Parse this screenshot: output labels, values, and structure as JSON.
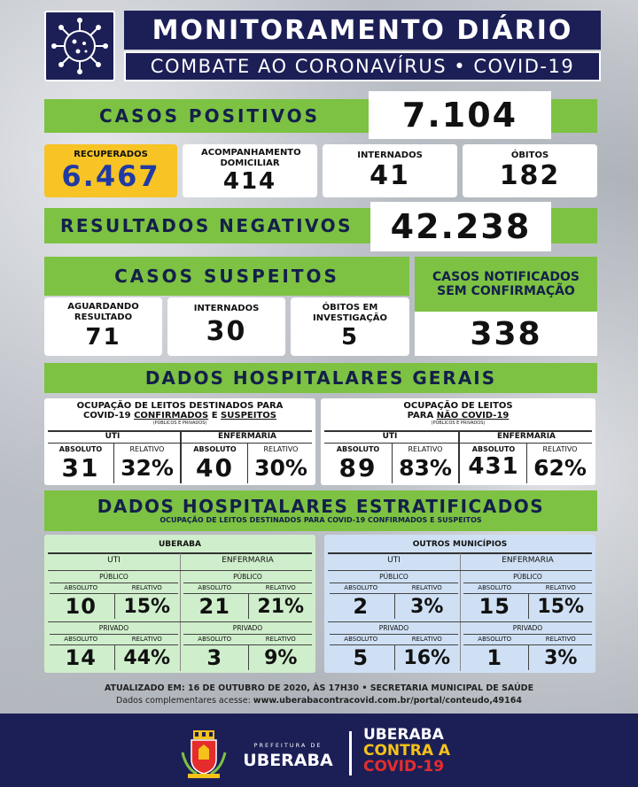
{
  "header": {
    "title": "MONITORAMENTO DIÁRIO",
    "subtitle": "COMBATE AO CORONAVÍRUS • COVID-19"
  },
  "positivos": {
    "label": "CASOS POSITIVOS",
    "value": "7.104"
  },
  "breakdown": [
    {
      "label": "RECUPERADOS",
      "value": "6.467"
    },
    {
      "label": "ACOMPANHAMENTO DOMICILIAR",
      "value": "414"
    },
    {
      "label": "INTERNADOS",
      "value": "41"
    },
    {
      "label": "ÓBITOS",
      "value": "182"
    }
  ],
  "negativos": {
    "label": "RESULTADOS NEGATIVOS",
    "value": "42.238"
  },
  "suspeitos": {
    "label": "CASOS SUSPEITOS",
    "items": [
      {
        "label": "AGUARDANDO RESULTADO",
        "value": "71"
      },
      {
        "label": "INTERNADOS",
        "value": "30"
      },
      {
        "label": "ÓBITOS EM INVESTIGAÇÃO",
        "value": "5"
      }
    ]
  },
  "notificados": {
    "label": "CASOS NOTIFICADOS SEM CONFIRMAÇÃO",
    "value": "338"
  },
  "gerais": {
    "title": "DADOS HOSPITALARES GERAIS",
    "covid": {
      "t1": "OCUPAÇÃO DE LEITOS DESTINADOS PARA",
      "t2a": "COVID-19 ",
      "t2b": "CONFIRMADOS",
      "t2c": " E ",
      "t2d": "SUSPEITOS",
      "note": "(PÚBLICOS E PRIVADOS)",
      "uti": "UTI",
      "enf": "ENFERMARIA",
      "abs": "ABSOLUTO",
      "rel": "RELATIVO",
      "uti_abs": "31",
      "uti_rel": "32%",
      "enf_abs": "40",
      "enf_rel": "30%"
    },
    "naocovid": {
      "t1": "OCUPAÇÃO DE LEITOS",
      "t2a": "PARA ",
      "t2b": "NÃO COVID-19",
      "note": "(PÚBLICOS E PRIVADOS)",
      "uti": "UTI",
      "enf": "ENFERMARIA",
      "abs": "ABSOLUTO",
      "rel": "RELATIVO",
      "uti_abs": "89",
      "uti_rel": "83%",
      "enf_abs": "431",
      "enf_rel": "62%"
    }
  },
  "estratificados": {
    "title": "DADOS HOSPITALARES ESTRATIFICADOS",
    "subtitle": "OCUPAÇÃO DE LEITOS DESTINADOS PARA COVID-19 CONFIRMADOS E SUSPEITOS",
    "uberaba": {
      "name": "UBERABA",
      "uti": "UTI",
      "enf": "ENFERMARIA",
      "pub": "PÚBLICO",
      "priv": "PRIVADO",
      "abs": "ABSOLUTO",
      "rel": "RELATIVO",
      "uti_pub_abs": "10",
      "uti_pub_rel": "15%",
      "enf_pub_abs": "21",
      "enf_pub_rel": "21%",
      "uti_priv_abs": "14",
      "uti_priv_rel": "44%",
      "enf_priv_abs": "3",
      "enf_priv_rel": "9%"
    },
    "outros": {
      "name": "OUTROS MUNICÍPIOS",
      "uti": "UTI",
      "enf": "ENFERMARIA",
      "pub": "PÚBLICO",
      "priv": "PRIVADO",
      "abs": "ABSOLUTO",
      "rel": "RELATIVO",
      "uti_pub_abs": "2",
      "uti_pub_rel": "3%",
      "enf_pub_abs": "15",
      "enf_pub_rel": "15%",
      "uti_priv_abs": "5",
      "uti_priv_rel": "16%",
      "enf_priv_abs": "1",
      "enf_priv_rel": "3%"
    }
  },
  "update": {
    "line1": "ATUALIZADO EM: 16 DE OUTUBRO DE 2020, ÀS 17H30 • SECRETARIA MUNICIPAL DE SAÚDE",
    "line2a": "Dados complementares acesse: ",
    "line2b": "www.uberabacontracovid.com.br/portal/conteudo,49164"
  },
  "footer": {
    "pref_small": "PREFEITURA DE",
    "pref_city": "UBERABA",
    "campaign1": "UBERABA",
    "campaign2": "CONTRA A",
    "campaign3": "COVID-19"
  },
  "colors": {
    "navy": "#1c1f56",
    "green": "#7dc242",
    "yellow": "#f7c325",
    "uberaba_panel": "#cfeecb",
    "outros_panel": "#cfe0f5",
    "blue_value": "#1f3aa5",
    "footer_yellow": "#f5c21a",
    "footer_red": "#e52d2d"
  }
}
